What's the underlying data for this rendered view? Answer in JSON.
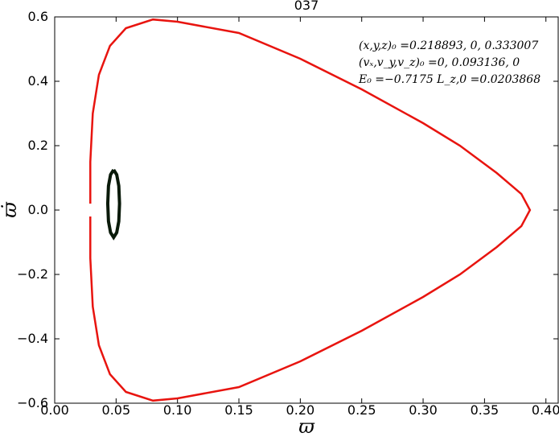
{
  "chart_data": {
    "type": "line",
    "title": "037",
    "xlabel": "ϖ",
    "ylabel": "ϖ̇",
    "annotations": [
      "(x,y,z)₀ =0.218893, 0, 0.333007",
      "(vₓ,v_y,v_z)₀ =0, 0.093136, 0",
      "E₀ =−0.7175  L_z,0 =0.0203868"
    ],
    "xlim": [
      0,
      0.41
    ],
    "ylim": [
      -0.6,
      0.6
    ],
    "xticks": [
      {
        "value": 0,
        "label": "0.00"
      },
      {
        "value": 0.05,
        "label": "0.05"
      },
      {
        "value": 0.1,
        "label": "0.10"
      },
      {
        "value": 0.15,
        "label": "0.15"
      },
      {
        "value": 0.2,
        "label": "0.20"
      },
      {
        "value": 0.25,
        "label": "0.25"
      },
      {
        "value": 0.3,
        "label": "0.30"
      },
      {
        "value": 0.35,
        "label": "0.35"
      },
      {
        "value": 0.4,
        "label": "0.40"
      }
    ],
    "yticks": [
      {
        "value": -0.6,
        "label": "−0.6"
      },
      {
        "value": -0.4,
        "label": "−0.4"
      },
      {
        "value": -0.2,
        "label": "−0.2"
      },
      {
        "value": 0,
        "label": "0.0"
      },
      0.2,
      0.4,
      0.6
    ],
    "series": [
      {
        "color": "#e8140f",
        "width": 2.5,
        "x": [
          0.029,
          0.029,
          0.031,
          0.036,
          0.045,
          0.058,
          0.08,
          0.1,
          0.15,
          0.2,
          0.25,
          0.3,
          0.33,
          0.36,
          0.38,
          0.387,
          0.38,
          0.36,
          0.33,
          0.3,
          0.25,
          0.2,
          0.15,
          0.1,
          0.08,
          0.058,
          0.045,
          0.036,
          0.031,
          0.029,
          0.029
        ],
        "values": [
          0.02,
          0.15,
          0.3,
          0.42,
          0.51,
          0.565,
          0.592,
          0.585,
          0.55,
          0.47,
          0.375,
          0.27,
          0.2,
          0.115,
          0.05,
          0,
          -0.05,
          -0.115,
          -0.2,
          -0.27,
          -0.375,
          -0.47,
          -0.55,
          -0.585,
          -0.592,
          -0.565,
          -0.51,
          -0.42,
          -0.3,
          -0.15,
          -0.02
        ]
      },
      {
        "color": "#0a1a0a",
        "width": 4,
        "x": [
          0.048,
          0.0505,
          0.0522,
          0.0528,
          0.0522,
          0.0505,
          0.048,
          0.0455,
          0.0438,
          0.0432,
          0.0438,
          0.0455,
          0.048
        ],
        "values": [
          0.125,
          0.11,
          0.075,
          0.02,
          -0.035,
          -0.07,
          -0.085,
          -0.07,
          -0.035,
          0.02,
          0.075,
          0.11,
          0.125
        ]
      }
    ]
  }
}
